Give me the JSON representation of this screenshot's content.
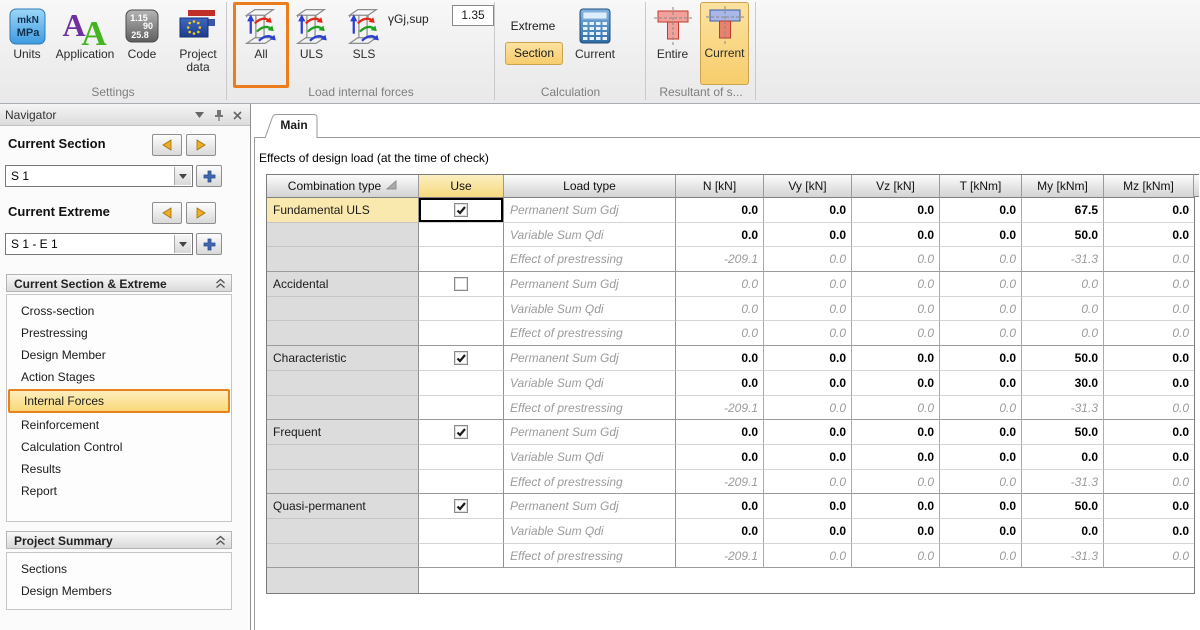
{
  "ribbon": {
    "groups": [
      {
        "name": "Settings"
      },
      {
        "name": "Load internal forces"
      },
      {
        "name": "Calculation"
      },
      {
        "name": "Resultant of s..."
      }
    ],
    "settings": {
      "units_label": "Units",
      "application_label": "Application",
      "code_label": "Code",
      "project_data_label1": "Project",
      "project_data_label2": "data",
      "units_icon_line1": "mkN",
      "units_icon_line2": "MPa",
      "code_icon_line1": "1.15",
      "code_icon_line2": "90",
      "code_icon_line3": "25.8"
    },
    "load_internal_forces": {
      "all_label": "All",
      "uls_label": "ULS",
      "sls_label": "SLS",
      "gamma_label": "γGj,sup",
      "gamma_value": "1.35"
    },
    "calculation": {
      "extreme_label": "Extreme",
      "section_button": "Section",
      "current_label": "Current"
    },
    "resultant": {
      "entire_label": "Entire",
      "current_label": "Current"
    }
  },
  "navigator": {
    "title": "Navigator",
    "current_section_label": "Current Section",
    "current_section_value": "S 1",
    "current_extreme_label": "Current Extreme",
    "current_extreme_value": "S 1 - E 1",
    "sections": [
      {
        "header": "Current Section & Extreme",
        "items": [
          "Cross-section",
          "Prestressing",
          "Design Member",
          "Action Stages",
          "Internal Forces",
          "Reinforcement",
          "Calculation Control",
          "Results",
          "Report"
        ],
        "selected": "Internal Forces"
      },
      {
        "header": "Project Summary",
        "items": [
          "Sections",
          "Design Members"
        ],
        "selected": null
      }
    ]
  },
  "main": {
    "tab": "Main",
    "caption": "Effects of design load (at the time of check)",
    "table": {
      "columns": [
        "Combination type",
        "Use",
        "Load type",
        "N [kN]",
        "Vy [kN]",
        "Vz [kN]",
        "T [kNm]",
        "My [kNm]",
        "Mz [kNm]"
      ],
      "groups": [
        {
          "combination": "Fundamental ULS",
          "use": true,
          "selected": true,
          "focused_cell": "use",
          "rows": [
            {
              "load_type": "Permanent Sum Gdj",
              "values": [
                "0.0",
                "0.0",
                "0.0",
                "0.0",
                "67.5",
                "0.0"
              ],
              "muted": false
            },
            {
              "load_type": "Variable Sum Qdi",
              "values": [
                "0.0",
                "0.0",
                "0.0",
                "0.0",
                "50.0",
                "0.0"
              ],
              "muted": false
            },
            {
              "load_type": "Effect of prestressing",
              "values": [
                "-209.1",
                "0.0",
                "0.0",
                "0.0",
                "-31.3",
                "0.0"
              ],
              "muted": true
            }
          ]
        },
        {
          "combination": "Accidental",
          "use": false,
          "selected": false,
          "focused_cell": null,
          "rows": [
            {
              "load_type": "Permanent Sum Gdj",
              "values": [
                "0.0",
                "0.0",
                "0.0",
                "0.0",
                "0.0",
                "0.0"
              ],
              "muted": true
            },
            {
              "load_type": "Variable Sum Qdi",
              "values": [
                "0.0",
                "0.0",
                "0.0",
                "0.0",
                "0.0",
                "0.0"
              ],
              "muted": true
            },
            {
              "load_type": "Effect of prestressing",
              "values": [
                "0.0",
                "0.0",
                "0.0",
                "0.0",
                "0.0",
                "0.0"
              ],
              "muted": true
            }
          ]
        },
        {
          "combination": "Characteristic",
          "use": true,
          "selected": false,
          "focused_cell": null,
          "rows": [
            {
              "load_type": "Permanent Sum Gdj",
              "values": [
                "0.0",
                "0.0",
                "0.0",
                "0.0",
                "50.0",
                "0.0"
              ],
              "muted": false
            },
            {
              "load_type": "Variable Sum Qdi",
              "values": [
                "0.0",
                "0.0",
                "0.0",
                "0.0",
                "30.0",
                "0.0"
              ],
              "muted": false
            },
            {
              "load_type": "Effect of prestressing",
              "values": [
                "-209.1",
                "0.0",
                "0.0",
                "0.0",
                "-31.3",
                "0.0"
              ],
              "muted": true
            }
          ]
        },
        {
          "combination": "Frequent",
          "use": true,
          "selected": false,
          "focused_cell": null,
          "rows": [
            {
              "load_type": "Permanent Sum Gdj",
              "values": [
                "0.0",
                "0.0",
                "0.0",
                "0.0",
                "50.0",
                "0.0"
              ],
              "muted": false
            },
            {
              "load_type": "Variable Sum Qdi",
              "values": [
                "0.0",
                "0.0",
                "0.0",
                "0.0",
                "0.0",
                "0.0"
              ],
              "muted": false
            },
            {
              "load_type": "Effect of prestressing",
              "values": [
                "-209.1",
                "0.0",
                "0.0",
                "0.0",
                "-31.3",
                "0.0"
              ],
              "muted": true
            }
          ]
        },
        {
          "combination": "Quasi-permanent",
          "use": true,
          "selected": false,
          "focused_cell": null,
          "rows": [
            {
              "load_type": "Permanent Sum Gdj",
              "values": [
                "0.0",
                "0.0",
                "0.0",
                "0.0",
                "50.0",
                "0.0"
              ],
              "muted": false
            },
            {
              "load_type": "Variable Sum Qdi",
              "values": [
                "0.0",
                "0.0",
                "0.0",
                "0.0",
                "0.0",
                "0.0"
              ],
              "muted": false
            },
            {
              "load_type": "Effect of prestressing",
              "values": [
                "-209.1",
                "0.0",
                "0.0",
                "0.0",
                "-31.3",
                "0.0"
              ],
              "muted": true
            }
          ]
        }
      ]
    }
  },
  "colors": {
    "accent_orange": "#ec7c1c",
    "selection_yellow": "#fae9ae",
    "use_header_yellow": "#f5d97e",
    "orange_button": "#f7cd6c"
  }
}
